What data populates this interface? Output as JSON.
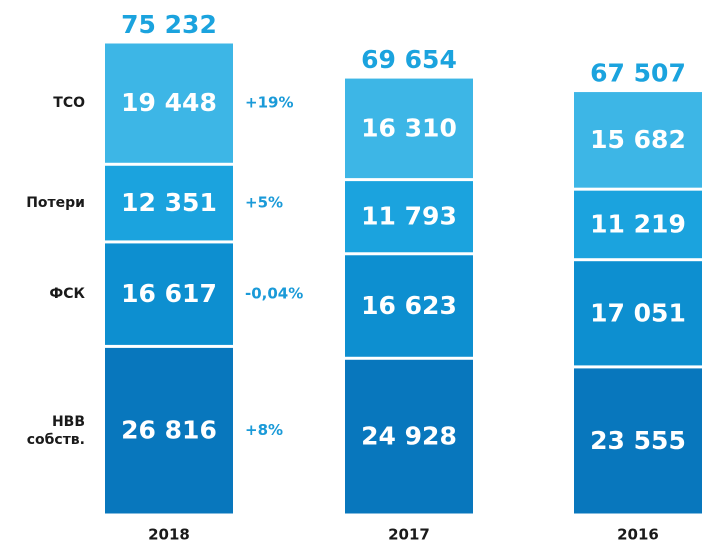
{
  "chart_data": {
    "type": "stacked_bar",
    "categories": [
      "2018",
      "2017",
      "2016"
    ],
    "totals": [
      75232,
      69654,
      67507
    ],
    "total_labels": [
      "75 232",
      "69 654",
      "67 507"
    ],
    "series": [
      {
        "name": "НВВ собств.",
        "color": "#0877bd",
        "values": [
          26816,
          24928,
          23555
        ],
        "value_labels": [
          "26 816",
          "24 928",
          "23 555"
        ],
        "change_label": "+8%"
      },
      {
        "name": "ФСК",
        "color": "#0d8fd0",
        "values": [
          16617,
          16623,
          17051
        ],
        "value_labels": [
          "16 617",
          "16 623",
          "17 051"
        ],
        "change_label": "-0,04%"
      },
      {
        "name": "Потери",
        "color": "#1ba3de",
        "values": [
          12351,
          11793,
          11219
        ],
        "value_labels": [
          "12 351",
          "11 793",
          "11 219"
        ],
        "change_label": "+5%"
      },
      {
        "name": "ТСО",
        "color": "#3db6e6",
        "values": [
          19448,
          16310,
          15682
        ],
        "value_labels": [
          "19 448",
          "16 310",
          "15 682"
        ],
        "change_label": "+19%"
      }
    ]
  }
}
